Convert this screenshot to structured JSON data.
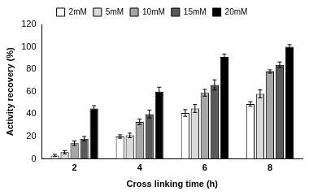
{
  "chart_data": {
    "type": "bar",
    "x_label": "Cross linking time (h)",
    "y_label": "Activity recovery (%)",
    "categories": [
      "2",
      "4",
      "6",
      "8"
    ],
    "series": [
      {
        "name": "2mM",
        "color": "#ffffff",
        "values": [
          3,
          20,
          41,
          49
        ],
        "errors": [
          1,
          1.5,
          3,
          2
        ]
      },
      {
        "name": "5mM",
        "color": "#d9d9d9",
        "values": [
          6,
          21,
          45,
          58
        ],
        "errors": [
          1.5,
          2,
          3.5,
          3.5
        ]
      },
      {
        "name": "10mM",
        "color": "#a6a6a6",
        "values": [
          14,
          33,
          59,
          78
        ],
        "errors": [
          2,
          2.5,
          3,
          1.5
        ]
      },
      {
        "name": "15mM",
        "color": "#595959",
        "values": [
          18,
          40,
          66,
          84
        ],
        "errors": [
          2,
          3.5,
          4.5,
          2.5
        ]
      },
      {
        "name": "20mM",
        "color": "#000000",
        "values": [
          45,
          60,
          91,
          100
        ],
        "errors": [
          2.5,
          4,
          2.5,
          2
        ]
      }
    ],
    "ylim": [
      0,
      120
    ],
    "yticks": [
      0,
      20,
      40,
      60,
      80,
      100,
      120
    ],
    "grid": false,
    "legend": "top"
  }
}
